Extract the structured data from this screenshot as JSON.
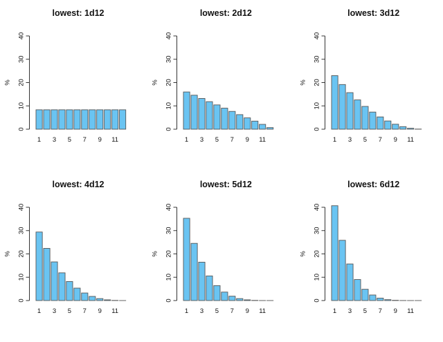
{
  "page": {
    "background": "#ffffff"
  },
  "style": {
    "bar_fill": "#6ac4f2",
    "bar_border": "#565656",
    "axis_color": "#333333",
    "text_color": "#111111"
  },
  "chart_data": [
    {
      "type": "bar",
      "title": "lowest: 1d12",
      "ylabel": "%",
      "ylim": [
        0,
        40
      ],
      "yticks": [
        0,
        10,
        20,
        30,
        40
      ],
      "xticks": [
        1,
        3,
        5,
        7,
        9,
        11
      ],
      "grid": false,
      "categories": [
        1,
        2,
        3,
        4,
        5,
        6,
        7,
        8,
        9,
        10,
        11,
        12
      ],
      "values": [
        8.33,
        8.33,
        8.33,
        8.33,
        8.33,
        8.33,
        8.33,
        8.33,
        8.33,
        8.33,
        8.33,
        8.33
      ]
    },
    {
      "type": "bar",
      "title": "lowest: 2d12",
      "ylabel": "%",
      "ylim": [
        0,
        40
      ],
      "yticks": [
        0,
        10,
        20,
        30,
        40
      ],
      "xticks": [
        1,
        3,
        5,
        7,
        9,
        11
      ],
      "grid": false,
      "categories": [
        1,
        2,
        3,
        4,
        5,
        6,
        7,
        8,
        9,
        10,
        11,
        12
      ],
      "values": [
        15.97,
        14.58,
        13.19,
        11.81,
        10.42,
        9.03,
        7.64,
        6.25,
        4.86,
        3.47,
        2.08,
        0.69
      ]
    },
    {
      "type": "bar",
      "title": "lowest: 3d12",
      "ylabel": "%",
      "ylim": [
        0,
        40
      ],
      "yticks": [
        0,
        10,
        20,
        30,
        40
      ],
      "xticks": [
        1,
        3,
        5,
        7,
        9,
        11
      ],
      "grid": false,
      "categories": [
        1,
        2,
        3,
        4,
        5,
        6,
        7,
        8,
        9,
        10,
        11,
        12
      ],
      "values": [
        22.97,
        19.16,
        15.68,
        12.56,
        9.78,
        7.35,
        5.27,
        3.53,
        2.14,
        1.1,
        0.41,
        0.06
      ]
    },
    {
      "type": "bar",
      "title": "lowest: 4d12",
      "ylabel": "%",
      "ylim": [
        0,
        40
      ],
      "yticks": [
        0,
        10,
        20,
        30,
        40
      ],
      "xticks": [
        1,
        3,
        5,
        7,
        9,
        11
      ],
      "grid": false,
      "categories": [
        1,
        2,
        3,
        4,
        5,
        6,
        7,
        8,
        9,
        10,
        11,
        12
      ],
      "values": [
        29.39,
        22.38,
        16.58,
        11.89,
        8.17,
        5.33,
        3.24,
        1.78,
        0.84,
        0.31,
        0.07,
        0.005
      ]
    },
    {
      "type": "bar",
      "title": "lowest: 5d12",
      "ylabel": "%",
      "ylim": [
        0,
        40
      ],
      "yticks": [
        0,
        10,
        20,
        30,
        40
      ],
      "xticks": [
        1,
        3,
        5,
        7,
        9,
        11
      ],
      "grid": false,
      "categories": [
        1,
        2,
        3,
        4,
        5,
        6,
        7,
        8,
        9,
        10,
        11,
        12
      ],
      "values": [
        35.28,
        24.53,
        16.46,
        10.56,
        6.41,
        3.63,
        1.87,
        0.84,
        0.31,
        0.08,
        0.012,
        0.0004
      ]
    },
    {
      "type": "bar",
      "title": "lowest: 6d12",
      "ylabel": "%",
      "ylim": [
        0,
        40
      ],
      "yticks": [
        0,
        10,
        20,
        30,
        40
      ],
      "xticks": [
        1,
        3,
        5,
        7,
        9,
        11
      ],
      "grid": false,
      "categories": [
        1,
        2,
        3,
        4,
        5,
        6,
        7,
        8,
        9,
        10,
        11,
        12
      ],
      "values": [
        40.67,
        25.84,
        15.69,
        9.02,
        4.84,
        2.38,
        1.04,
        0.39,
        0.11,
        0.022,
        0.002,
        0.0001
      ]
    }
  ]
}
